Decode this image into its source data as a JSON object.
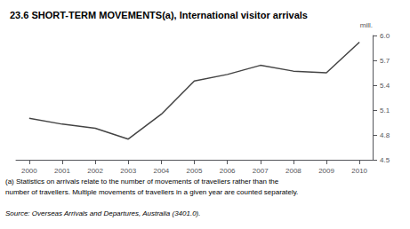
{
  "chart_data": {
    "type": "line",
    "title": "23.6 SHORT-TERM MOVEMENTS(a), International visitor arrivals",
    "y_label": "mill.",
    "x": [
      2000,
      2001,
      2002,
      2003,
      2004,
      2005,
      2006,
      2007,
      2008,
      2009,
      2010
    ],
    "values": [
      5.0,
      4.93,
      4.88,
      4.75,
      5.05,
      5.45,
      5.53,
      5.64,
      5.57,
      5.55,
      5.92
    ],
    "color": "#444444",
    "xlim": [
      1999.6,
      2010.4
    ],
    "xticks": [
      2000,
      2001,
      2002,
      2003,
      2004,
      2005,
      2006,
      2007,
      2008,
      2009,
      2010
    ],
    "ylim": [
      4.5,
      6.0
    ],
    "yticks": [
      4.5,
      4.8,
      5.1,
      5.4,
      5.7,
      {
        "value": 6.0,
        "label": "6.0"
      }
    ],
    "grid": false,
    "annotations": [
      "(a) Statistics on arrivals relate to the number of movements of travellers rather than the",
      "number of travellers. Multiple movements of travellers in a given year are counted separately.",
      "Source: Overseas Arrivals and Departures, Australia (3401.0)."
    ]
  }
}
